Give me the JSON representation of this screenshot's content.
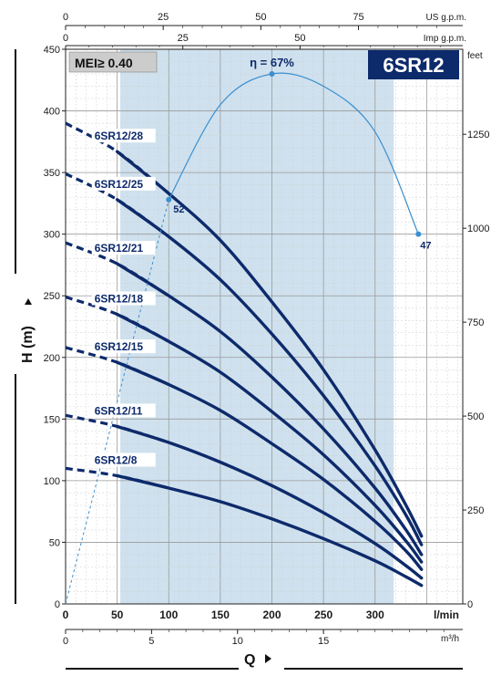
{
  "chart_data": {
    "type": "line",
    "title": "6SR12",
    "badge": "MEI≥ 0.40",
    "x_axis": {
      "label": "Q",
      "unit": "l/min",
      "range": [
        0,
        385
      ],
      "ticks": [
        0,
        50,
        100,
        150,
        200,
        250,
        300
      ]
    },
    "x_axis_m3h": {
      "unit": "m³/h",
      "ticks": [
        0,
        5,
        10,
        15
      ]
    },
    "x_axis_us": {
      "unit": "US g.p.m.",
      "ticks": [
        0,
        25,
        50,
        75
      ]
    },
    "x_axis_imp": {
      "unit": "Imp g.p.m.",
      "ticks": [
        0,
        25,
        50
      ]
    },
    "y_axis": {
      "label": "H (m)",
      "range": [
        0,
        450
      ],
      "ticks": [
        0,
        50,
        100,
        150,
        200,
        250,
        300,
        350,
        400,
        450
      ]
    },
    "y_axis_feet": {
      "unit": "feet",
      "ticks": [
        0,
        250,
        500,
        750,
        1000,
        1250
      ]
    },
    "recommended_range": [
      53,
      318
    ],
    "series": [
      {
        "name": "6SR12/28",
        "x": [
          0,
          50,
          100,
          150,
          200,
          250,
          300,
          330,
          345
        ],
        "y": [
          390,
          367,
          333,
          295,
          245,
          190,
          125,
          80,
          55
        ]
      },
      {
        "name": "6SR12/25",
        "x": [
          0,
          50,
          100,
          150,
          200,
          250,
          300,
          330,
          345
        ],
        "y": [
          349,
          328,
          298,
          263,
          219,
          169,
          112,
          72,
          48
        ]
      },
      {
        "name": "6SR12/21",
        "x": [
          0,
          50,
          100,
          150,
          200,
          250,
          300,
          330,
          345
        ],
        "y": [
          293,
          276,
          250,
          221,
          184,
          142,
          94,
          60,
          40
        ]
      },
      {
        "name": "6SR12/18",
        "x": [
          0,
          50,
          100,
          150,
          200,
          250,
          300,
          330,
          345
        ],
        "y": [
          249,
          235,
          213,
          188,
          156,
          121,
          80,
          51,
          34
        ]
      },
      {
        "name": "6SR12/15",
        "x": [
          0,
          50,
          100,
          150,
          200,
          250,
          300,
          330,
          345
        ],
        "y": [
          208,
          196,
          178,
          157,
          130,
          101,
          67,
          43,
          28
        ]
      },
      {
        "name": "6SR12/11",
        "x": [
          0,
          50,
          100,
          150,
          200,
          250,
          300,
          330,
          345
        ],
        "y": [
          153,
          144,
          131,
          115,
          96,
          74,
          49,
          31,
          21
        ]
      },
      {
        "name": "6SR12/8",
        "x": [
          0,
          50,
          100,
          150,
          200,
          250,
          300,
          330,
          345
        ],
        "y": [
          110,
          104,
          94,
          83,
          69,
          53,
          35,
          22,
          15
        ]
      }
    ],
    "efficiency": {
      "peak_label": "η = 67%",
      "points": [
        {
          "x": 100,
          "label": "52"
        },
        {
          "x": 200,
          "label": "67"
        },
        {
          "x": 342,
          "label": "47"
        }
      ]
    }
  }
}
